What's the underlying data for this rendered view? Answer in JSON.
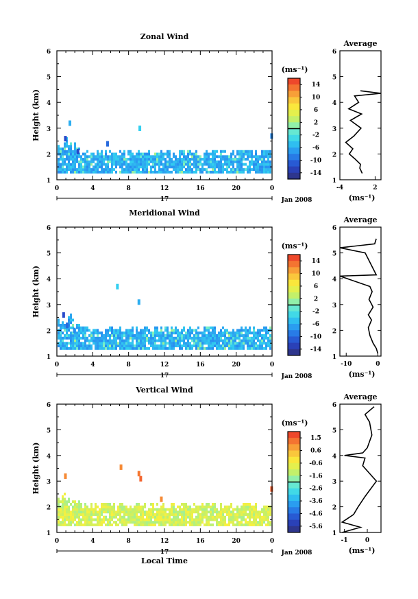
{
  "figure": {
    "date_label": "Jan 2008",
    "day_label": "17",
    "xlabel": "Local Time",
    "height_axis_label": "Height (km)",
    "unit_label": "(ms⁻¹)",
    "avg_xlabel": "(ms⁻¹)"
  },
  "chart_data": [
    {
      "type": "heatmap",
      "title": "Zonal Wind",
      "ylabel": "Height (km)",
      "xticks": [
        "0",
        "4",
        "8",
        "12",
        "16",
        "20",
        "0"
      ],
      "yticks": [
        "1",
        "2",
        "3",
        "4",
        "5",
        "6"
      ],
      "ylim": [
        1,
        6
      ],
      "xlim": [
        0,
        24
      ],
      "colorbar": {
        "label": "(ms⁻¹)",
        "ticks": [
          "14",
          "10",
          "6",
          "2",
          "-2",
          "-6",
          "-10",
          "-14"
        ],
        "range": [
          -16,
          16
        ]
      },
      "average_profile": {
        "title": "Average",
        "xticks": [
          "-4",
          "2"
        ],
        "xlim": [
          -4,
          3
        ],
        "yticks": [
          "1",
          "2",
          "3",
          "4",
          "5",
          "6"
        ],
        "xlabel": "(ms⁻¹)",
        "points": [
          [
            -0.2,
            1.25
          ],
          [
            -0.6,
            1.45
          ],
          [
            -0.5,
            1.6
          ],
          [
            -1.4,
            1.8
          ],
          [
            -2.4,
            2.0
          ],
          [
            -1.8,
            2.2
          ],
          [
            -3.0,
            2.45
          ],
          [
            -1.6,
            2.7
          ],
          [
            -0.4,
            3.0
          ],
          [
            -2.2,
            3.3
          ],
          [
            -0.3,
            3.55
          ],
          [
            -2.5,
            3.75
          ],
          [
            -0.8,
            4.0
          ],
          [
            -1.5,
            4.25
          ],
          [
            3.0,
            4.35
          ],
          [
            -0.5,
            4.45
          ]
        ]
      }
    },
    {
      "type": "heatmap",
      "title": "Meridional Wind",
      "ylabel": "Height (km)",
      "xticks": [
        "0",
        "4",
        "8",
        "12",
        "16",
        "20",
        "0"
      ],
      "yticks": [
        "1",
        "2",
        "3",
        "4",
        "5",
        "6"
      ],
      "ylim": [
        1,
        6
      ],
      "xlim": [
        0,
        24
      ],
      "colorbar": {
        "label": "(ms⁻¹)",
        "ticks": [
          "14",
          "10",
          "6",
          "2",
          "-2",
          "-6",
          "-10",
          "-14"
        ],
        "range": [
          -16,
          16
        ]
      },
      "average_profile": {
        "title": "Average",
        "xticks": [
          "-10",
          "0"
        ],
        "xlim": [
          -12,
          1
        ],
        "yticks": [
          "1",
          "2",
          "3",
          "4",
          "5",
          "6"
        ],
        "xlabel": "(ms⁻¹)",
        "points": [
          [
            0,
            1.1
          ],
          [
            -0.5,
            1.3
          ],
          [
            -1.5,
            1.5
          ],
          [
            -2.5,
            1.8
          ],
          [
            -3.0,
            2.1
          ],
          [
            -2.0,
            2.4
          ],
          [
            -3.0,
            2.6
          ],
          [
            -1.5,
            2.9
          ],
          [
            -2.8,
            3.2
          ],
          [
            -1.8,
            3.5
          ],
          [
            -2.5,
            3.7
          ],
          [
            -12,
            4.1
          ],
          [
            -0.5,
            4.15
          ],
          [
            -4.0,
            5.0
          ],
          [
            -12,
            5.2
          ],
          [
            -1,
            5.35
          ],
          [
            -0.5,
            5.55
          ]
        ]
      }
    },
    {
      "type": "heatmap",
      "title": "Vertical Wind",
      "ylabel": "Height (km)",
      "xlabel": "Local Time",
      "xticks": [
        "0",
        "4",
        "8",
        "12",
        "16",
        "20",
        "0"
      ],
      "yticks": [
        "1",
        "2",
        "3",
        "4",
        "5",
        "6"
      ],
      "ylim": [
        1,
        6
      ],
      "xlim": [
        0,
        24
      ],
      "colorbar": {
        "label": "(ms⁻¹)",
        "ticks": [
          "1.5",
          "0.6",
          "-0.6",
          "-1.6",
          "-2.6",
          "-3.6",
          "-4.6",
          "-5.6"
        ],
        "range": [
          -6.0,
          2.0
        ]
      },
      "average_profile": {
        "title": "Average",
        "xticks": [
          "-1",
          "0"
        ],
        "xlim": [
          -1.2,
          0.6
        ],
        "yticks": [
          "1",
          "2",
          "3",
          "4",
          "5",
          "6"
        ],
        "xlabel": "(ms⁻¹)",
        "points": [
          [
            -1.1,
            1.0
          ],
          [
            -0.3,
            1.2
          ],
          [
            -1.1,
            1.4
          ],
          [
            -0.6,
            1.7
          ],
          [
            -0.4,
            2.0
          ],
          [
            -0.1,
            2.4
          ],
          [
            0.4,
            3.0
          ],
          [
            0.1,
            3.3
          ],
          [
            -0.2,
            3.6
          ],
          [
            -0.1,
            3.9
          ],
          [
            -1.0,
            4.0
          ],
          [
            -0.2,
            4.1
          ],
          [
            0.0,
            4.3
          ],
          [
            0.2,
            4.8
          ],
          [
            0.1,
            5.3
          ],
          [
            -0.1,
            5.6
          ],
          [
            0.3,
            5.9
          ]
        ]
      }
    }
  ]
}
